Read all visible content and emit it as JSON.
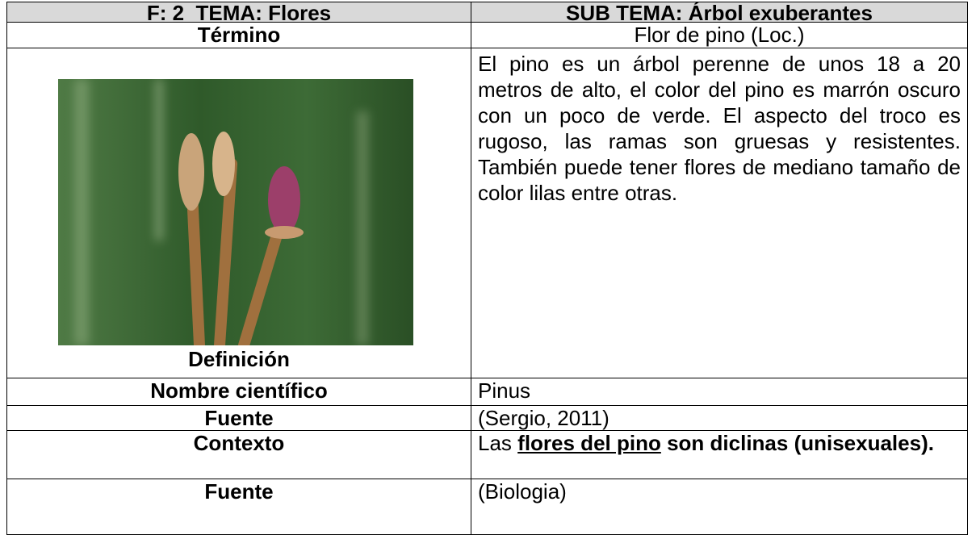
{
  "header": {
    "left": "F: 2  TEMA: Flores",
    "right": "SUB TEMA: Árbol exuberantes"
  },
  "term": {
    "label": "Término",
    "value": "Flor de pino (Loc.)"
  },
  "definition": {
    "label": "Definición",
    "text": "El pino es un árbol perenne de unos 18 a 20 metros de alto, el color del pino es marrón oscuro con un poco de verde. El aspecto del troco es rugoso, las ramas son gruesas y resistentes. También puede tener flores de mediano tamaño de color lilas entre otras."
  },
  "scientific_name": {
    "label": "Nombre científico",
    "value": "Pinus"
  },
  "source_1": {
    "label": "Fuente",
    "value": "(Sergio, 2011)"
  },
  "context": {
    "label": "Contexto",
    "parts": [
      "Las",
      "flores del pino",
      "son diclinas (unisexuales)."
    ]
  },
  "source_2": {
    "label": "Fuente",
    "value": "(Biologia)"
  }
}
